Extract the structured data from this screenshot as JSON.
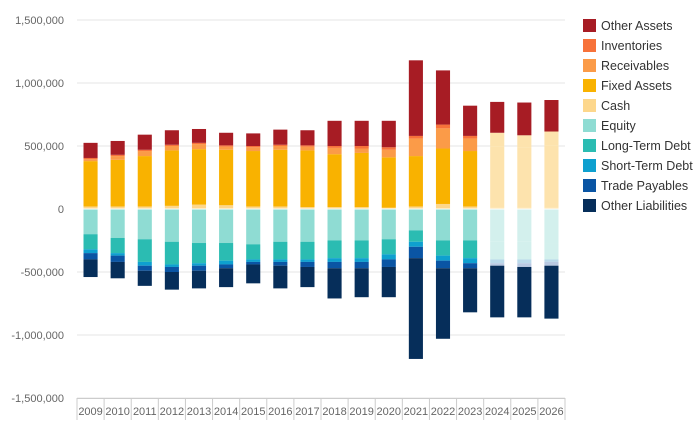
{
  "chart_data": {
    "type": "bar",
    "stacked": true,
    "categories": [
      "2009",
      "2010",
      "2011",
      "2012",
      "2013",
      "2014",
      "2015",
      "2016",
      "2017",
      "2018",
      "2019",
      "2020",
      "2021",
      "2022",
      "2023",
      "2024",
      "2025",
      "2026"
    ],
    "ylim": [
      -1500000,
      1500000
    ],
    "yticks": [
      1500000,
      1000000,
      500000,
      0,
      -500000,
      -1000000,
      -1500000
    ],
    "ytick_labels": [
      "1,500,000",
      "1,000,000",
      "500,000",
      "0",
      "-500,000",
      "-1,000,000",
      "-1,500,000"
    ],
    "grid": true,
    "legend_position": "right",
    "forecast_categories": [
      "2024",
      "2025",
      "2026"
    ],
    "asset_series": [
      {
        "name": "Cash",
        "color": "#fdd78c",
        "forecast_color": "#fde3ad",
        "values": [
          20000,
          20000,
          20000,
          25000,
          35000,
          30000,
          20000,
          20000,
          15000,
          15000,
          15000,
          10000,
          20000,
          40000,
          20000,
          15000,
          15000,
          15000
        ]
      },
      {
        "name": "Fixed Assets",
        "color": "#f9b200",
        "forecast_color": "#fde3ad",
        "values": [
          360000,
          370000,
          400000,
          440000,
          440000,
          440000,
          440000,
          450000,
          450000,
          420000,
          430000,
          400000,
          400000,
          440000,
          440000,
          480000,
          470000,
          490000
        ]
      },
      {
        "name": "Receivables",
        "color": "#fb9b48",
        "forecast_color": "#fde3ad",
        "values": [
          15000,
          30000,
          40000,
          35000,
          40000,
          25000,
          30000,
          30000,
          30000,
          50000,
          35000,
          60000,
          140000,
          160000,
          100000,
          110000,
          100000,
          110000
        ]
      },
      {
        "name": "Inventories",
        "color": "#f7723a",
        "forecast_color": "#fde3ad",
        "values": [
          10000,
          10000,
          10000,
          10000,
          10000,
          10000,
          10000,
          10000,
          10000,
          15000,
          20000,
          20000,
          20000,
          30000,
          20000,
          0,
          0,
          0
        ]
      },
      {
        "name": "Other Assets",
        "color": "#a71c24",
        "values": [
          120000,
          110000,
          120000,
          115000,
          110000,
          100000,
          100000,
          120000,
          120000,
          200000,
          200000,
          210000,
          600000,
          430000,
          240000,
          245000,
          260000,
          250000
        ]
      }
    ],
    "liability_series": [
      {
        "name": "Equity",
        "color": "#8fdcd3",
        "forecast_color": "#d3f0ed",
        "values": [
          -200000,
          -230000,
          -240000,
          -260000,
          -270000,
          -270000,
          -280000,
          -260000,
          -260000,
          -250000,
          -250000,
          -240000,
          -170000,
          -250000,
          -250000,
          -260000,
          -260000,
          -270000
        ]
      },
      {
        "name": "Long-Term Debt",
        "color": "#2bbcb2",
        "forecast_color": "#d3f0ed",
        "values": [
          -120000,
          -120000,
          -180000,
          -180000,
          -160000,
          -140000,
          -120000,
          -140000,
          -140000,
          -140000,
          -140000,
          -120000,
          -90000,
          -120000,
          -140000,
          -140000,
          -140000,
          -130000
        ]
      },
      {
        "name": "Short-Term Debt",
        "color": "#0ea0cf",
        "forecast_color": "#b9d9ea",
        "values": [
          -30000,
          -20000,
          -30000,
          -20000,
          -20000,
          -30000,
          -20000,
          -20000,
          -20000,
          -30000,
          -30000,
          -40000,
          -40000,
          -40000,
          -40000,
          -30000,
          -30000,
          -20000
        ]
      },
      {
        "name": "Trade Payables",
        "color": "#0a55a4",
        "forecast_color": "#b9c9e2",
        "values": [
          -50000,
          -50000,
          -40000,
          -40000,
          -40000,
          -30000,
          -20000,
          -30000,
          -40000,
          -50000,
          -50000,
          -60000,
          -90000,
          -60000,
          -40000,
          -20000,
          -30000,
          -30000
        ]
      },
      {
        "name": "Other Liabilities",
        "color": "#062e5a",
        "values": [
          -140000,
          -130000,
          -120000,
          -140000,
          -140000,
          -150000,
          -150000,
          -180000,
          -160000,
          -240000,
          -230000,
          -240000,
          -800000,
          -560000,
          -350000,
          -410000,
          -400000,
          -420000
        ]
      }
    ],
    "legend": [
      {
        "name": "Other Assets",
        "color": "#a71c24"
      },
      {
        "name": "Inventories",
        "color": "#f7723a"
      },
      {
        "name": "Receivables",
        "color": "#fb9b48"
      },
      {
        "name": "Fixed Assets",
        "color": "#f9b200"
      },
      {
        "name": "Cash",
        "color": "#fdd78c"
      },
      {
        "name": "Equity",
        "color": "#8fdcd3"
      },
      {
        "name": "Long-Term Debt",
        "color": "#2bbcb2"
      },
      {
        "name": "Short-Term Debt",
        "color": "#0ea0cf"
      },
      {
        "name": "Trade Payables",
        "color": "#0a55a4"
      },
      {
        "name": "Other Liabilities",
        "color": "#062e5a"
      }
    ]
  }
}
